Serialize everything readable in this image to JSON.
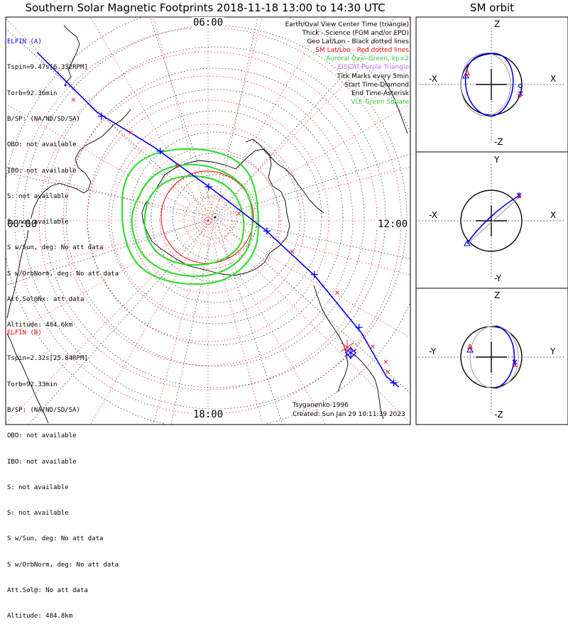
{
  "title": "Southern Solar Magnetic Footprints 2018-11-18 13:00 to 14:30 UTC",
  "orbit_title": "SM orbit",
  "time_labels": {
    "top": "06:00",
    "left": "00:00",
    "right": "12:00",
    "bottom": "18:00"
  },
  "legend": [
    {
      "text": "Earth/Oval View Center Time (triangle)",
      "color": "#000000"
    },
    {
      "text": "Thick - Science (FGM and/or EPD)",
      "color": "#000000"
    },
    {
      "text": "Geo Lat/Lon - Black dotted lines",
      "color": "#000000"
    },
    {
      "text": "SM Lat/Lon - Red dotted lines",
      "color": "#ff0000"
    },
    {
      "text": "Auroral Oval-Green, kp=2",
      "color": "#33cc33"
    },
    {
      "text": "EISCAT-Purple Triangle",
      "color": "#cc66ff"
    },
    {
      "text": "Tick Marks every 5min",
      "color": "#000000"
    },
    {
      "text": "Start Time-Diamond",
      "color": "#000000"
    },
    {
      "text": "End Time-Asterisk",
      "color": "#000000"
    },
    {
      "text": "VLF-Green Square",
      "color": "#33cc33"
    }
  ],
  "probe_a": {
    "name": "ELFIN (A)",
    "color": "#0000ff",
    "lines": [
      "Tspin=9.47s[6.332RPM]",
      "Torb=92.36min",
      "B/SP: (NA/ND/SD/SA)",
      "OBO: not available",
      "IBO: not available",
      "S: not available",
      "S: not available",
      "S w/Sun, deg: No att data",
      "S w/OrbNorm, deg: No att data",
      "Att.Sol@Nx: att data",
      "Altitude: 484.6km"
    ]
  },
  "probe_b": {
    "name": "ELFIN (B)",
    "color": "#ff0000",
    "lines": [
      "Tspin=2.32s[25.84RPM]",
      "Torb=92.33min",
      "B/SP: (NA/ND/SD/SA)",
      "OBO: not available",
      "IBO: not available",
      "S: not available",
      "S: not available",
      "S w/Sun, deg: No att data",
      "S w/OrbNorm, deg: No att data",
      "Att.Sol@: No att data",
      "Altitude: 484.8km"
    ]
  },
  "credits": {
    "author": "Tsyganenko-1996",
    "created": "Created: Sun Jan 29 10:11:39 2023"
  },
  "orbit_panels": [
    {
      "top_label": "Z",
      "bottom_label": "-Z",
      "left_label": "-X",
      "right_label": "X"
    },
    {
      "top_label": "Y",
      "bottom_label": "-Y",
      "left_label": "-X",
      "right_label": "X"
    },
    {
      "top_label": "Z",
      "bottom_label": "-Z",
      "left_label": "-Y",
      "right_label": "Y"
    }
  ],
  "chart_data": {
    "type": "polar footprint map",
    "projection": "southern hemisphere, magnetic local time around the rim",
    "grid": true,
    "track_a": {
      "name": "ELFIN (A)",
      "color": "#0000ff",
      "points": [
        [
          -0.833,
          0.821
        ],
        [
          -0.54,
          0.528
        ],
        [
          -0.26,
          0.357
        ],
        [
          0.03,
          0.147
        ],
        [
          0.28,
          -0.045
        ],
        [
          0.52,
          -0.268
        ],
        [
          0.75,
          -0.55
        ],
        [
          0.87,
          -0.76
        ],
        [
          0.93,
          -0.81
        ]
      ],
      "ticks": [
        [
          -0.52,
          0.51
        ],
        [
          -0.233,
          0.34
        ],
        [
          0.003,
          0.165
        ],
        [
          0.287,
          -0.05
        ],
        [
          0.518,
          -0.262
        ],
        [
          0.736,
          -0.52
        ],
        [
          0.905,
          -0.79
        ]
      ],
      "start_marker": "diamond",
      "end_marker": "asterisk"
    },
    "track_b_ticks": [
      [
        -0.656,
        0.59
      ],
      [
        -0.376,
        0.43
      ],
      [
        -0.15,
        0.27
      ],
      [
        0.15,
        0.035
      ],
      [
        0.41,
        -0.15
      ],
      [
        0.63,
        -0.35
      ],
      [
        0.802,
        -0.613
      ],
      [
        0.866,
        -0.687
      ],
      [
        0.877,
        -0.736
      ]
    ],
    "sm_circle_radius": 0.225,
    "auroral_oval_kp": 2
  }
}
